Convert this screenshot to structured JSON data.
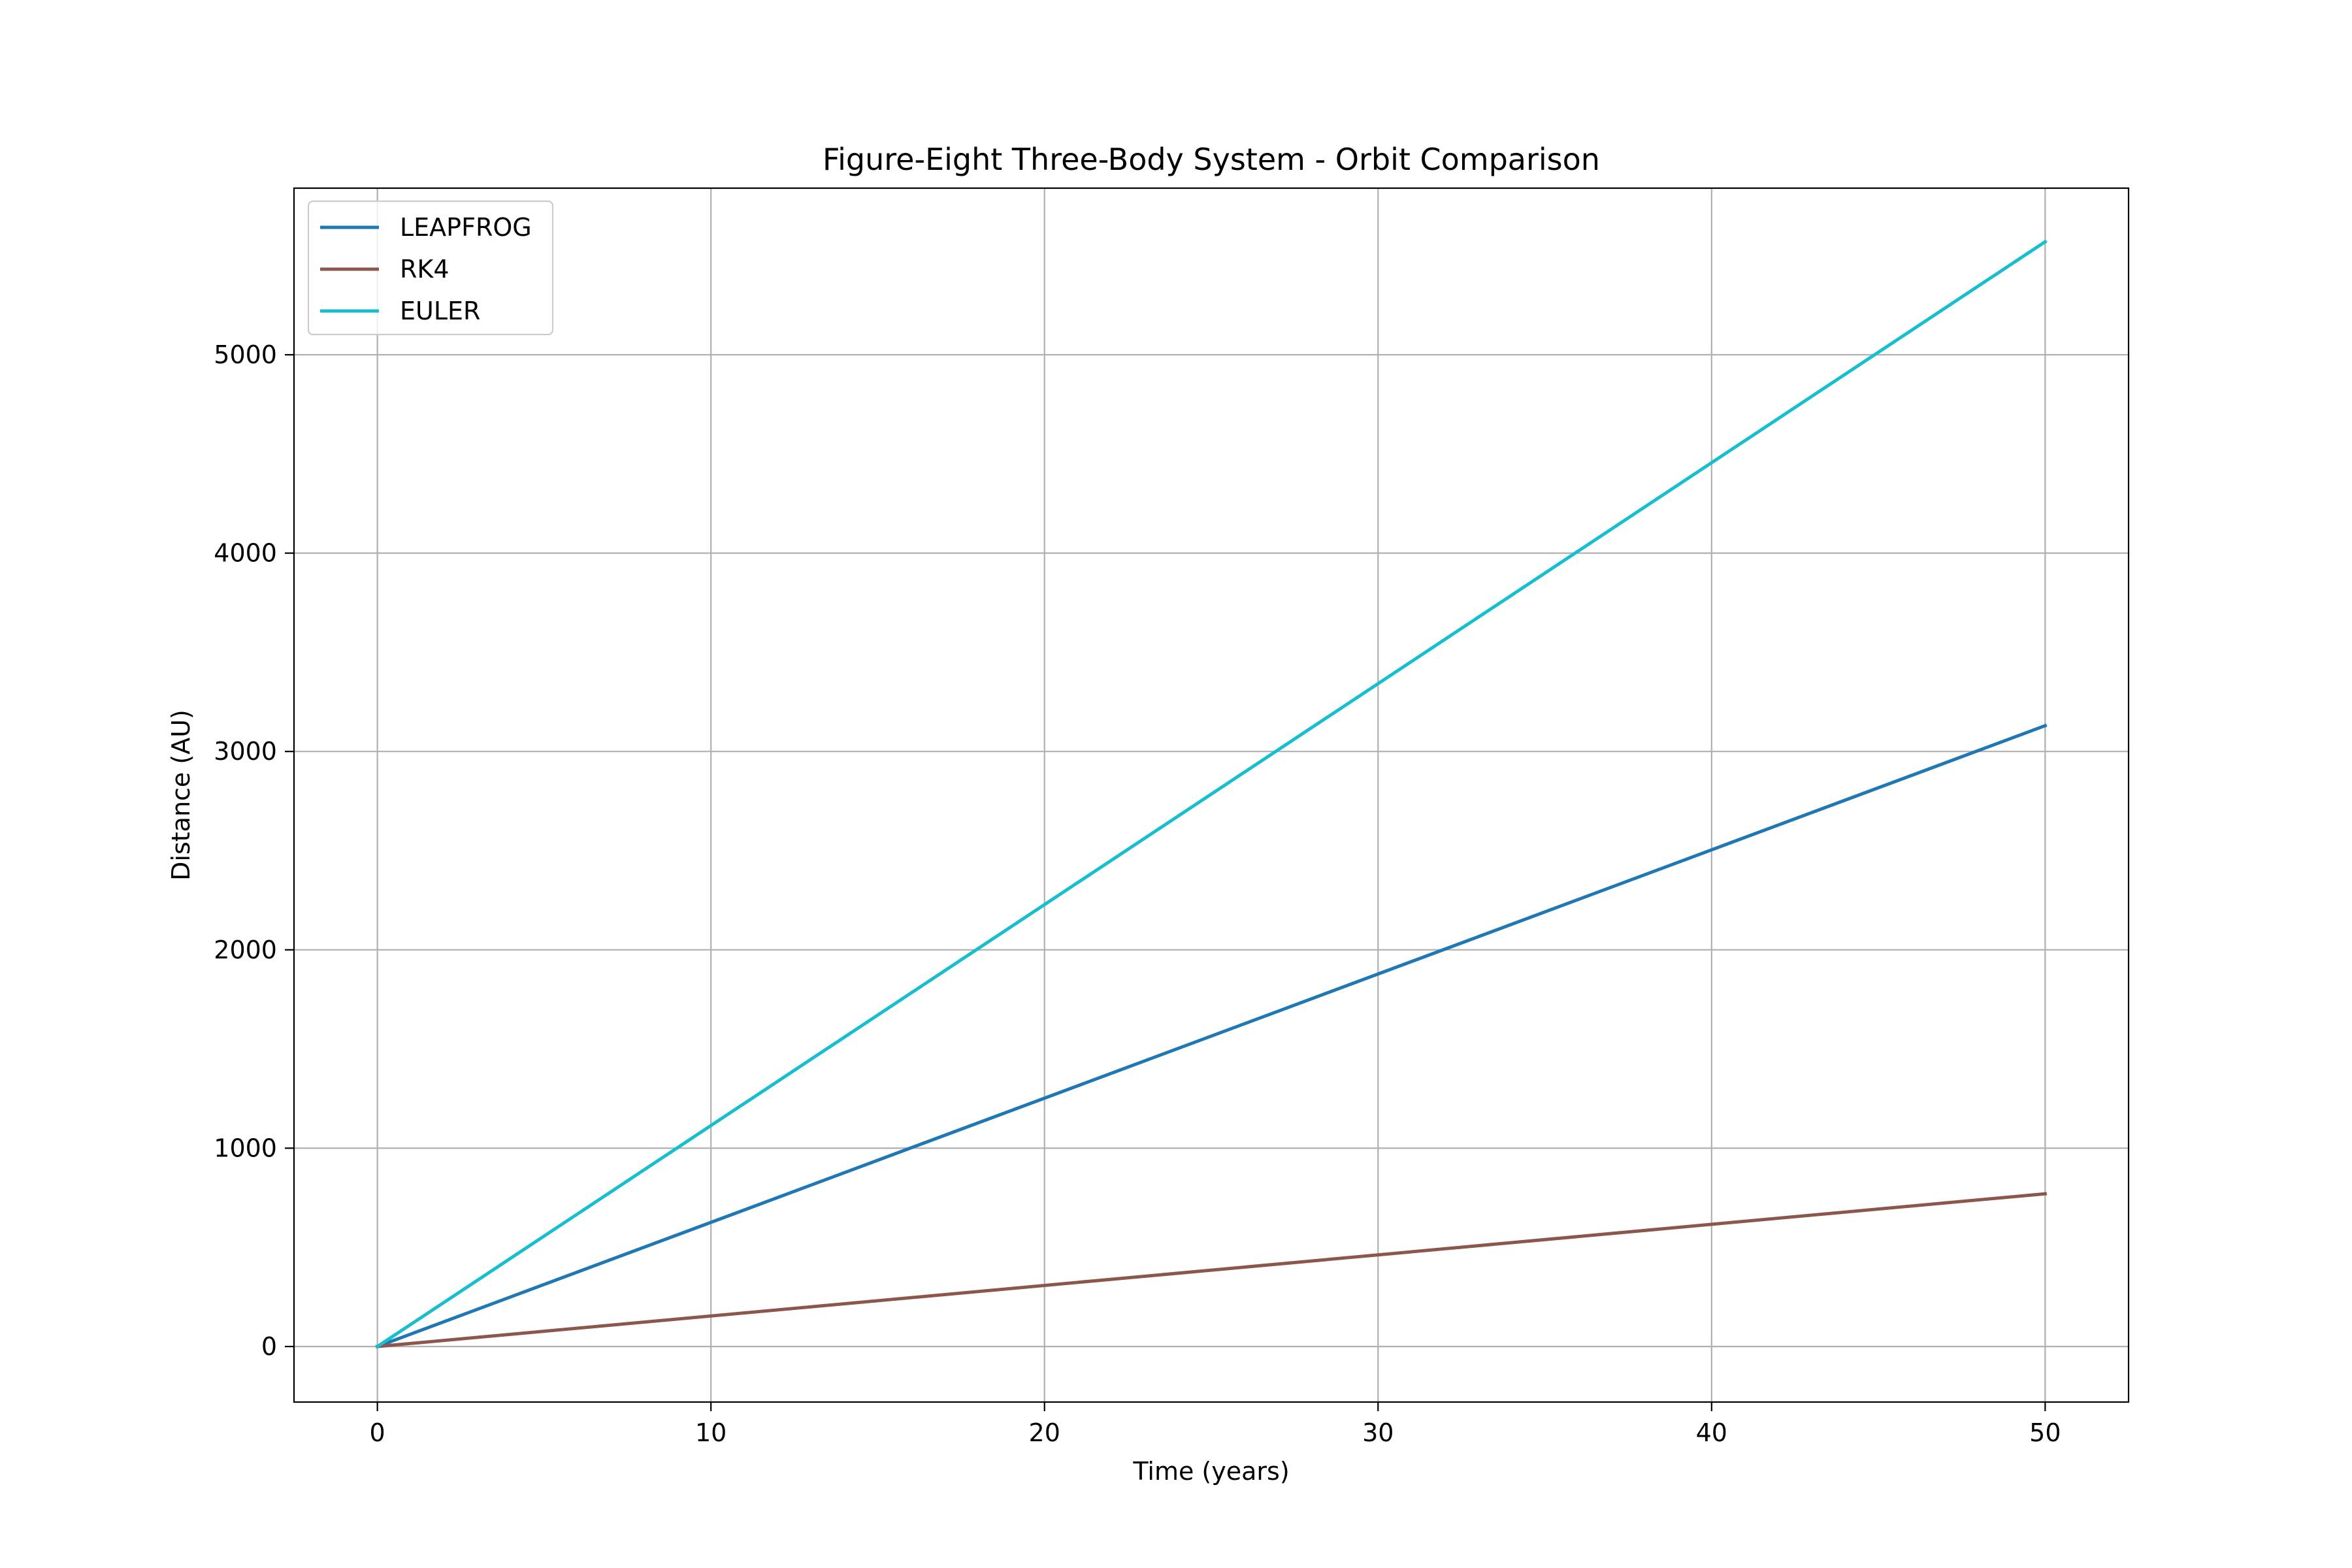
{
  "chart_data": {
    "type": "line",
    "title": "Figure-Eight Three-Body System - Orbit Comparison",
    "xlabel": "Time (years)",
    "ylabel": "Distance (AU)",
    "xlim": [
      -2.5,
      52.5
    ],
    "ylim": [
      -280,
      5840
    ],
    "xticks": [
      0,
      10,
      20,
      30,
      40,
      50
    ],
    "yticks": [
      0,
      1000,
      2000,
      3000,
      4000,
      5000
    ],
    "grid": true,
    "legend_position": "upper left",
    "series": [
      {
        "name": "LEAPFROG",
        "color": "#1f77b4",
        "x": [
          0,
          50
        ],
        "y": [
          0,
          3130
        ]
      },
      {
        "name": "RK4",
        "color": "#8c564b",
        "x": [
          0,
          50
        ],
        "y": [
          0,
          770
        ]
      },
      {
        "name": "EULER",
        "color": "#17becf",
        "x": [
          0,
          50
        ],
        "y": [
          0,
          5570
        ]
      }
    ]
  }
}
